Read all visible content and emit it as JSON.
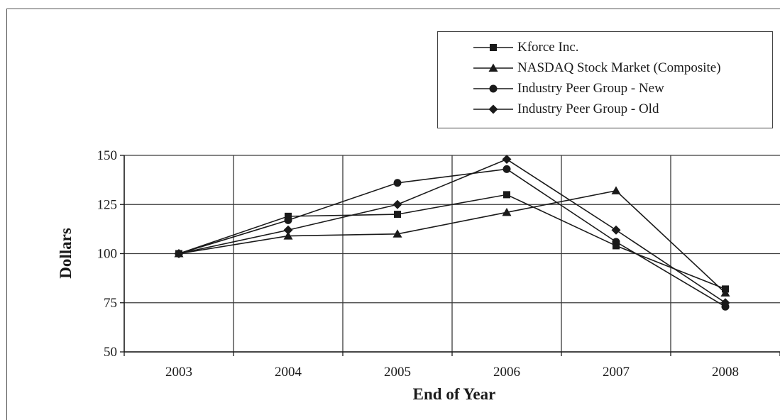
{
  "chart_data": {
    "type": "line",
    "title": "",
    "xlabel": "End of Year",
    "ylabel": "Dollars",
    "categories": [
      "2003",
      "2004",
      "2005",
      "2006",
      "2007",
      "2008"
    ],
    "yticks": [
      50,
      75,
      100,
      125,
      150
    ],
    "ylim": [
      50,
      150
    ],
    "grid": true,
    "legend_position": "top-right",
    "series": [
      {
        "name": "Kforce Inc.",
        "marker": "square",
        "values": [
          100,
          119,
          120,
          130,
          104,
          82
        ]
      },
      {
        "name": "NASDAQ Stock Market (Composite)",
        "marker": "triangle",
        "values": [
          100,
          109,
          110,
          121,
          132,
          80
        ]
      },
      {
        "name": "Industry Peer Group - New",
        "marker": "circle",
        "values": [
          100,
          117,
          136,
          143,
          106,
          73
        ]
      },
      {
        "name": "Industry Peer Group - Old",
        "marker": "diamond",
        "values": [
          100,
          112,
          125,
          148,
          112,
          75
        ]
      }
    ]
  },
  "colors": {
    "line": "#1a1a1a",
    "grid": "#3a3a3a",
    "background": "#ffffff"
  }
}
